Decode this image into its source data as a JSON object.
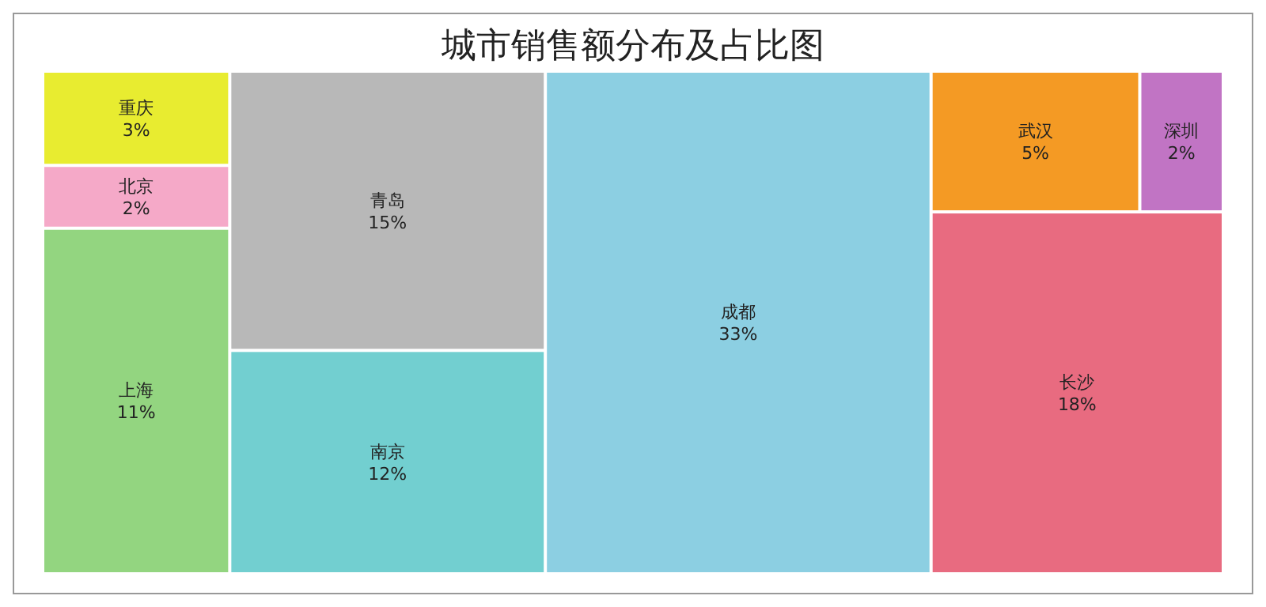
{
  "chart_data": {
    "type": "other",
    "title": "城市销售额分布及占比图",
    "categories": [
      "重庆",
      "北京",
      "上海",
      "青岛",
      "南京",
      "成都",
      "武汉",
      "深圳",
      "长沙"
    ],
    "values": [
      3,
      2,
      11,
      15,
      12,
      33,
      5,
      2,
      18
    ],
    "value_labels": [
      "3%",
      "2%",
      "11%",
      "15%",
      "12%",
      "33%",
      "5%",
      "2%",
      "18%"
    ],
    "colors": [
      "#e8ec30",
      "#f5a9c8",
      "#93d580",
      "#b8b8b8",
      "#72cfd0",
      "#8ccfe2",
      "#f49a24",
      "#c174c4",
      "#e86b80"
    ]
  }
}
